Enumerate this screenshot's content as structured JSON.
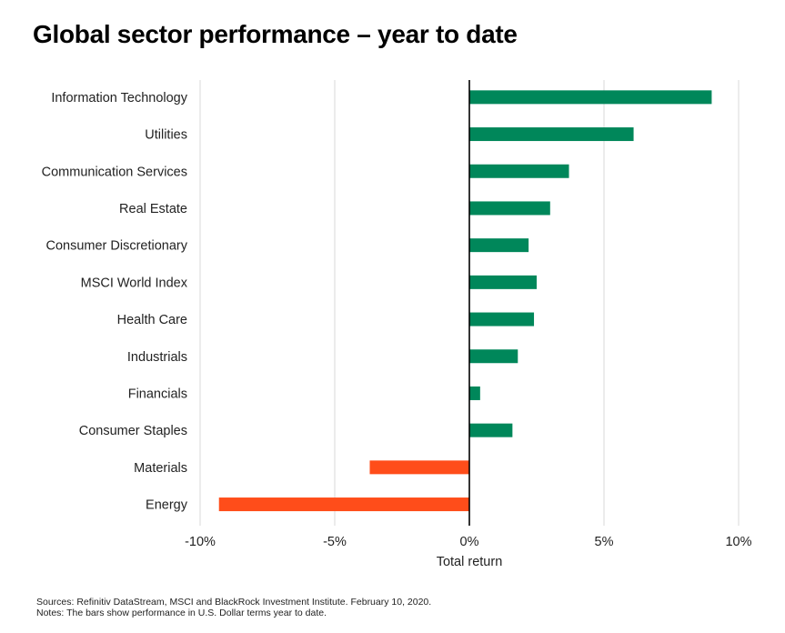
{
  "title": "Global sector performance – year to date",
  "chart_data": {
    "type": "bar",
    "orientation": "horizontal",
    "categories": [
      "Information Technology",
      "Utilities",
      "Communication Services",
      "Real Estate",
      "Consumer Discretionary",
      "MSCI World Index",
      "Health Care",
      "Industrials",
      "Financials",
      "Consumer Staples",
      "Materials",
      "Energy"
    ],
    "values": [
      9.0,
      6.1,
      3.7,
      3.0,
      2.2,
      2.5,
      2.4,
      1.8,
      0.4,
      1.6,
      -3.7,
      -9.3
    ],
    "xlabel": "Total return",
    "ylabel": "",
    "xlim": [
      -10,
      10
    ],
    "xticks": [
      -10,
      -5,
      0,
      5,
      10
    ],
    "xtick_labels": [
      "-10%",
      "-5%",
      "0%",
      "5%",
      "10%"
    ],
    "grid": "vertical",
    "colors": {
      "positive": "#00875A",
      "negative": "#FF4D1A",
      "zero_line": "#000000",
      "grid": "#d9d9d9"
    }
  },
  "footnotes": {
    "sources": "Sources: Refinitiv DataStream, MSCI and BlackRock Investment Institute. February 10, 2020.",
    "notes": "Notes: The bars show performance in U.S. Dollar terms year to date."
  }
}
